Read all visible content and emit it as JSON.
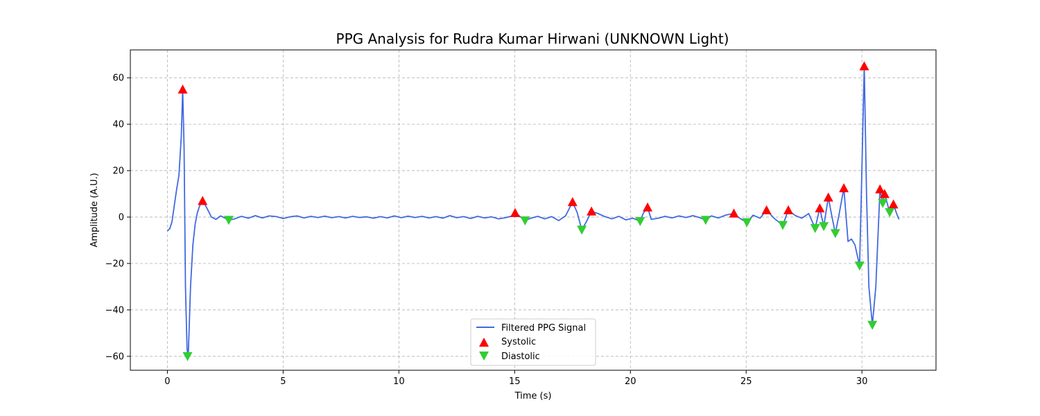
{
  "chart_data": {
    "type": "line",
    "title": "PPG Analysis for Rudra Kumar Hirwani (UNKNOWN Light)",
    "xlabel": "Time (s)",
    "ylabel": "Amplitude (A.U.)",
    "xlim": [
      -1.6,
      33.2
    ],
    "ylim": [
      -66,
      72
    ],
    "xticks": [
      0,
      5,
      10,
      15,
      20,
      25,
      30
    ],
    "yticks": [
      -60,
      -40,
      -20,
      0,
      20,
      40,
      60
    ],
    "grid": true,
    "legend_position": "lower center",
    "colors": {
      "signal": "#4169e1",
      "systolic": "#ff0000",
      "diastolic": "#32cd32"
    },
    "series": [
      {
        "name": "Filtered PPG Signal",
        "kind": "line",
        "x": [
          0.0,
          0.1,
          0.2,
          0.3,
          0.4,
          0.5,
          0.6,
          0.66,
          0.72,
          0.78,
          0.85,
          0.9,
          1.0,
          1.1,
          1.2,
          1.3,
          1.4,
          1.52,
          1.7,
          1.9,
          2.1,
          2.3,
          2.5,
          2.65,
          2.9,
          3.2,
          3.5,
          3.8,
          4.1,
          4.4,
          4.7,
          5.0,
          5.3,
          5.6,
          5.9,
          6.2,
          6.5,
          6.8,
          7.1,
          7.4,
          7.7,
          8.0,
          8.3,
          8.6,
          8.9,
          9.2,
          9.5,
          9.8,
          10.1,
          10.4,
          10.7,
          11.0,
          11.3,
          11.6,
          11.9,
          12.2,
          12.5,
          12.8,
          13.1,
          13.4,
          13.7,
          14.0,
          14.3,
          14.6,
          14.9,
          15.02,
          15.2,
          15.45,
          15.7,
          16.0,
          16.3,
          16.6,
          16.9,
          17.2,
          17.5,
          17.7,
          17.9,
          18.1,
          18.32,
          18.6,
          18.9,
          19.2,
          19.5,
          19.8,
          20.1,
          20.42,
          20.55,
          20.74,
          20.9,
          21.2,
          21.5,
          21.8,
          22.1,
          22.4,
          22.7,
          23.0,
          23.25,
          23.5,
          23.8,
          24.1,
          24.47,
          24.7,
          25.03,
          25.3,
          25.6,
          25.88,
          26.2,
          26.58,
          26.82,
          27.1,
          27.4,
          27.7,
          27.98,
          28.18,
          28.35,
          28.55,
          28.7,
          28.85,
          29.0,
          29.22,
          29.4,
          29.55,
          29.7,
          29.9,
          30.0,
          30.1,
          30.2,
          30.3,
          30.45,
          30.6,
          30.78,
          30.9,
          30.98,
          31.2,
          31.36,
          31.5,
          31.6
        ],
        "y": [
          -6,
          -5,
          -2,
          5,
          12,
          18,
          35,
          55,
          30,
          -30,
          -57,
          -60,
          -30,
          -12,
          -3,
          2,
          5,
          7,
          4,
          0,
          -1,
          0.5,
          -0.5,
          -1.3,
          -0.8,
          0.3,
          -0.5,
          0.6,
          -0.4,
          0.5,
          0.2,
          -0.6,
          0.1,
          0.5,
          -0.4,
          0.3,
          -0.2,
          0.4,
          -0.3,
          0.2,
          -0.4,
          0.3,
          -0.2,
          0.1,
          -0.5,
          0.2,
          -0.4,
          0.5,
          -0.3,
          0.4,
          -0.2,
          0.3,
          -0.4,
          0.2,
          -0.5,
          0.6,
          -0.3,
          0.2,
          -0.6,
          0.3,
          -0.4,
          0.1,
          -0.8,
          -0.3,
          0.5,
          1.8,
          0.5,
          -1.5,
          -0.5,
          0.3,
          -0.8,
          0.2,
          -1.5,
          0.5,
          6.5,
          2,
          -5.5,
          -2,
          2.5,
          1.5,
          0.2,
          -0.8,
          0.3,
          -1.2,
          -0.5,
          -1.8,
          1.5,
          4.2,
          -1,
          -0.5,
          0.3,
          -0.4,
          0.5,
          -0.2,
          0.6,
          -0.3,
          -1.3,
          0.5,
          -0.4,
          0.8,
          1.6,
          -0.4,
          -2.3,
          0.8,
          -0.5,
          3.0,
          -0.5,
          -3.5,
          3.0,
          0.8,
          -0.5,
          1.5,
          -4.8,
          3.8,
          -4.0,
          8.5,
          0.5,
          -7.0,
          0.5,
          12.5,
          -10.5,
          -9.5,
          -12,
          -21,
          20,
          65,
          10,
          -30,
          -46.5,
          -30,
          12,
          6,
          10,
          2,
          5.5,
          1.5,
          -1
        ]
      },
      {
        "name": "Systolic",
        "kind": "marker",
        "marker": "triangle-up",
        "x": [
          0.66,
          1.52,
          15.02,
          17.5,
          18.32,
          20.74,
          24.47,
          25.88,
          26.82,
          28.18,
          28.55,
          29.22,
          30.1,
          30.78,
          30.98,
          31.36
        ],
        "y": [
          55,
          7,
          1.8,
          6.5,
          2.5,
          4.2,
          1.6,
          3.0,
          3.0,
          3.8,
          8.5,
          12.5,
          65,
          12,
          10,
          5.5
        ]
      },
      {
        "name": "Diastolic",
        "kind": "marker",
        "marker": "triangle-down",
        "x": [
          0.87,
          2.65,
          15.45,
          17.9,
          20.42,
          23.25,
          25.03,
          26.58,
          27.98,
          28.35,
          28.85,
          29.9,
          30.45,
          30.9,
          31.2
        ],
        "y": [
          -60,
          -1.3,
          -1.5,
          -5.5,
          -1.8,
          -1.3,
          -2.3,
          -3.5,
          -4.8,
          -4.0,
          -7.0,
          -21,
          -46.5,
          6,
          2
        ]
      }
    ]
  }
}
